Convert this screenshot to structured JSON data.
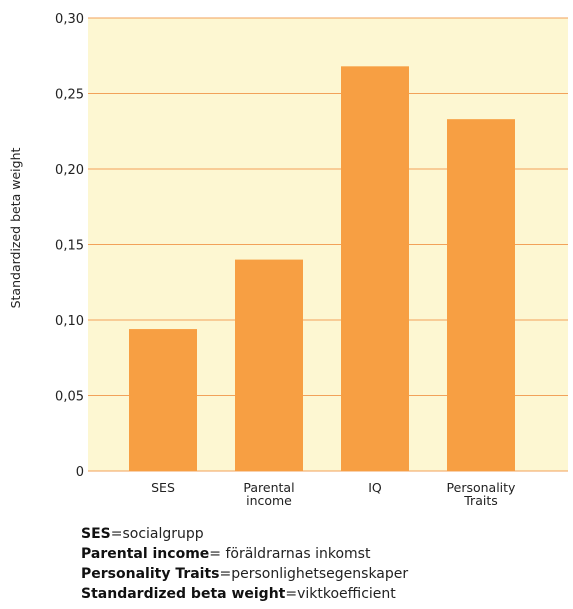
{
  "chart_data": {
    "type": "bar",
    "ylabel": "Standardized beta weight",
    "categories": [
      [
        "SES"
      ],
      [
        "Parental",
        "income"
      ],
      [
        "IQ"
      ],
      [
        "Personality",
        "Traits"
      ]
    ],
    "values": [
      0.094,
      0.14,
      0.268,
      0.233
    ],
    "ylim": [
      0,
      0.3
    ],
    "yticks": [
      0,
      0.05,
      0.1,
      0.15,
      0.2,
      0.25,
      0.3
    ],
    "ytick_labels": [
      "0",
      "0,05",
      "0,10",
      "0,15",
      "0,20",
      "0,25",
      "0,30"
    ],
    "grid": true,
    "colors": {
      "plot_background": "#fdf7d2",
      "bar": "#f79f43",
      "gridline": "#f2a25a"
    }
  },
  "legend": [
    {
      "term": "SES",
      "def": "=socialgrupp"
    },
    {
      "term": "Parental income",
      "def": "= föräldrarnas inkomst"
    },
    {
      "term": "Personality Traits",
      "def": "=personlighetsegenskaper"
    },
    {
      "term": "Standardized beta weight",
      "def": "=viktkoefficient"
    }
  ]
}
